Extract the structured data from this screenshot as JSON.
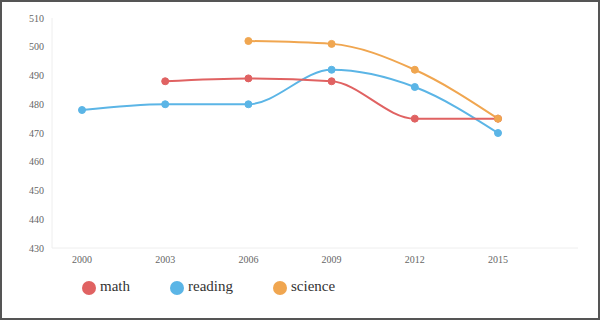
{
  "chart_data": {
    "type": "line",
    "categories": [
      "2000",
      "2003",
      "2006",
      "2009",
      "2012",
      "2015"
    ],
    "series": [
      {
        "name": "reading",
        "color": "#5bb5e6",
        "values": [
          478,
          480,
          480,
          492,
          486,
          470
        ]
      },
      {
        "name": "math",
        "color": "#e06262",
        "values": [
          null,
          488,
          489,
          488,
          475,
          475
        ]
      },
      {
        "name": "science",
        "color": "#f0a650",
        "values": [
          null,
          null,
          502,
          501,
          492,
          475
        ]
      }
    ],
    "ylim": [
      430,
      510
    ],
    "yticks": [
      430,
      440,
      450,
      460,
      470,
      480,
      490,
      500,
      510
    ],
    "grid": false,
    "legend": "bottom",
    "marker": "circle"
  }
}
